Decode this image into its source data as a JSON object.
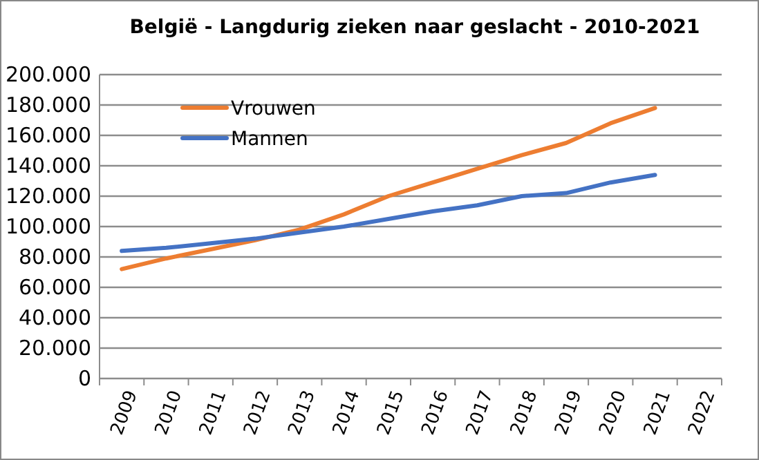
{
  "chart_data": {
    "type": "line",
    "title": "België - Langdurig zieken naar geslacht - 2010-2021",
    "categories": [
      "2009",
      "2010",
      "2011",
      "2012",
      "2013",
      "2014",
      "2015",
      "2016",
      "2017",
      "2018",
      "2019",
      "2020",
      "2021",
      "2022"
    ],
    "series": [
      {
        "name": "Vrouwen",
        "color": "#ed7d31",
        "values": [
          72000,
          79000,
          85000,
          91000,
          98000,
          108000,
          120000,
          129000,
          138000,
          147000,
          155000,
          168000,
          178000,
          null
        ]
      },
      {
        "name": "Mannen",
        "color": "#4472c4",
        "values": [
          84000,
          86000,
          89000,
          92000,
          96000,
          100000,
          105000,
          110000,
          114000,
          120000,
          122000,
          129000,
          134000,
          null
        ]
      }
    ],
    "ylim": [
      0,
      200000
    ],
    "yticks": [
      {
        "value": 0,
        "label": "0"
      },
      {
        "value": 20000,
        "label": "20.000"
      },
      {
        "value": 40000,
        "label": "40.000"
      },
      {
        "value": 60000,
        "label": "60.000"
      },
      {
        "value": 80000,
        "label": "80.000"
      },
      {
        "value": 100000,
        "label": "100.000"
      },
      {
        "value": 120000,
        "label": "120.000"
      },
      {
        "value": 140000,
        "label": "140.000"
      },
      {
        "value": 160000,
        "label": "160.000"
      },
      {
        "value": 180000,
        "label": "180.000"
      },
      {
        "value": 200000,
        "label": "200.000"
      }
    ],
    "grid": "y",
    "legend": "top left",
    "marker": "none",
    "line_style": "solid"
  }
}
